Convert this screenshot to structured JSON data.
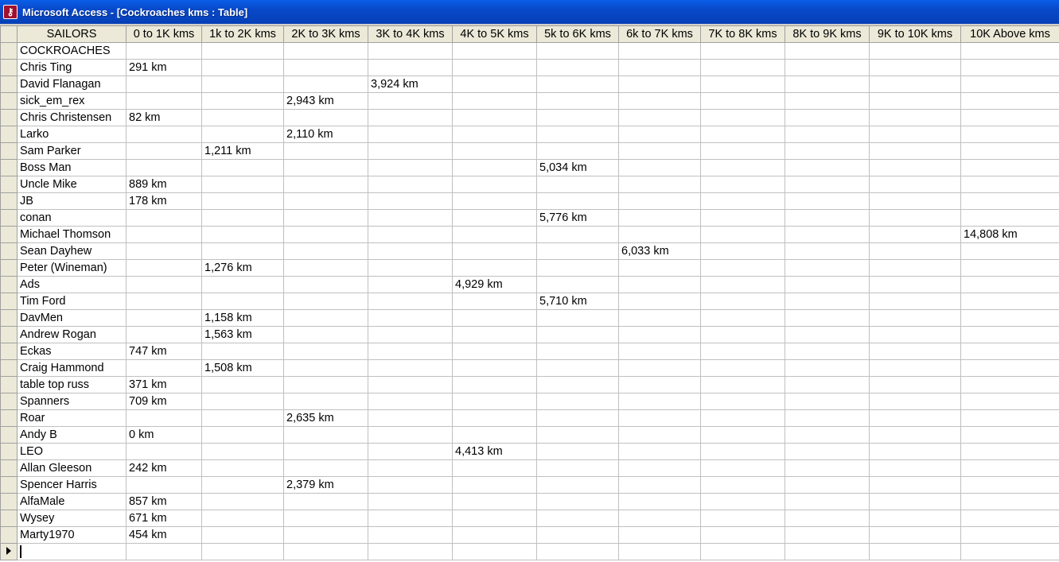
{
  "window": {
    "title": "Microsoft Access - [Cockroaches kms : Table]",
    "icon": "access-key-icon"
  },
  "table": {
    "headers": [
      "SAILORS",
      "0 to 1K kms",
      "1k to 2K kms",
      "2K to 3K kms",
      "3K to 4K kms",
      "4K to 5K kms",
      "5k to 6K kms",
      "6k to 7K kms",
      "7K to 8K kms",
      "8K to 9K kms",
      "9K to 10K kms",
      "10K Above kms"
    ],
    "rows": [
      [
        "COCKROACHES",
        "",
        "",
        "",
        "",
        "",
        "",
        "",
        "",
        "",
        "",
        ""
      ],
      [
        "Chris Ting",
        "291 km",
        "",
        "",
        "",
        "",
        "",
        "",
        "",
        "",
        "",
        ""
      ],
      [
        "David Flanagan",
        "",
        "",
        "",
        "3,924 km",
        "",
        "",
        "",
        "",
        "",
        "",
        ""
      ],
      [
        "sick_em_rex",
        "",
        "",
        "2,943 km",
        "",
        "",
        "",
        "",
        "",
        "",
        "",
        ""
      ],
      [
        "Chris Christensen",
        "82 km",
        "",
        "",
        "",
        "",
        "",
        "",
        "",
        "",
        "",
        ""
      ],
      [
        "Larko",
        "",
        "",
        "2,110 km",
        "",
        "",
        "",
        "",
        "",
        "",
        "",
        ""
      ],
      [
        "Sam Parker",
        "",
        "1,211 km",
        "",
        "",
        "",
        "",
        "",
        "",
        "",
        "",
        ""
      ],
      [
        "Boss Man",
        "",
        "",
        "",
        "",
        "",
        "5,034 km",
        "",
        "",
        "",
        "",
        ""
      ],
      [
        "Uncle Mike",
        "889 km",
        "",
        "",
        "",
        "",
        "",
        "",
        "",
        "",
        "",
        ""
      ],
      [
        "JB",
        "178 km",
        "",
        "",
        "",
        "",
        "",
        "",
        "",
        "",
        "",
        ""
      ],
      [
        "conan",
        "",
        "",
        "",
        "",
        "",
        "5,776 km",
        "",
        "",
        "",
        "",
        ""
      ],
      [
        "Michael Thomson",
        "",
        "",
        "",
        "",
        "",
        "",
        "",
        "",
        "",
        "",
        "14,808 km"
      ],
      [
        "Sean Dayhew",
        "",
        "",
        "",
        "",
        "",
        "",
        "6,033 km",
        "",
        "",
        "",
        ""
      ],
      [
        "Peter (Wineman)",
        "",
        "1,276 km",
        "",
        "",
        "",
        "",
        "",
        "",
        "",
        "",
        ""
      ],
      [
        "Ads",
        "",
        "",
        "",
        "",
        "4,929 km",
        "",
        "",
        "",
        "",
        "",
        ""
      ],
      [
        "Tim Ford",
        "",
        "",
        "",
        "",
        "",
        "5,710 km",
        "",
        "",
        "",
        "",
        ""
      ],
      [
        "DavMen",
        "",
        "1,158 km",
        "",
        "",
        "",
        "",
        "",
        "",
        "",
        "",
        ""
      ],
      [
        "Andrew Rogan",
        "",
        "1,563 km",
        "",
        "",
        "",
        "",
        "",
        "",
        "",
        "",
        ""
      ],
      [
        "Eckas",
        "747 km",
        "",
        "",
        "",
        "",
        "",
        "",
        "",
        "",
        "",
        ""
      ],
      [
        "Craig Hammond",
        "",
        "1,508 km",
        "",
        "",
        "",
        "",
        "",
        "",
        "",
        "",
        ""
      ],
      [
        "table top russ",
        "371 km",
        "",
        "",
        "",
        "",
        "",
        "",
        "",
        "",
        "",
        ""
      ],
      [
        "Spanners",
        "709 km",
        "",
        "",
        "",
        "",
        "",
        "",
        "",
        "",
        "",
        ""
      ],
      [
        "Roar",
        "",
        "",
        "2,635 km",
        "",
        "",
        "",
        "",
        "",
        "",
        "",
        ""
      ],
      [
        "Andy B",
        "0 km",
        "",
        "",
        "",
        "",
        "",
        "",
        "",
        "",
        "",
        ""
      ],
      [
        "LEO",
        "",
        "",
        "",
        "",
        "4,413 km",
        "",
        "",
        "",
        "",
        "",
        ""
      ],
      [
        "Allan Gleeson",
        "242 km",
        "",
        "",
        "",
        "",
        "",
        "",
        "",
        "",
        "",
        ""
      ],
      [
        "Spencer Harris",
        "",
        "",
        "2,379 km",
        "",
        "",
        "",
        "",
        "",
        "",
        "",
        ""
      ],
      [
        "AlfaMale",
        "857 km",
        "",
        "",
        "",
        "",
        "",
        "",
        "",
        "",
        "",
        ""
      ],
      [
        "Wysey",
        "671 km",
        "",
        "",
        "",
        "",
        "",
        "",
        "",
        "",
        "",
        ""
      ],
      [
        "Marty1970",
        "454 km",
        "",
        "",
        "",
        "",
        "",
        "",
        "",
        "",
        "",
        ""
      ]
    ]
  }
}
